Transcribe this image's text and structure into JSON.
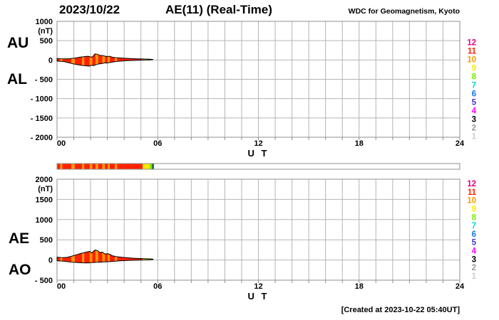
{
  "header": {
    "date": "2023/10/22",
    "title": "AE(11) (Real-Time)",
    "organization": "WDC for Geomagnetism, Kyoto"
  },
  "footer": {
    "created": "[Created at 2023-10-22 05:40UT]"
  },
  "station_count_scale": {
    "counts": [
      12,
      11,
      10,
      9,
      8,
      7,
      6,
      5,
      4,
      3,
      2,
      1
    ],
    "colors": {
      "12": "#e6007e",
      "11": "#ff2200",
      "10": "#ff9900",
      "9": "#ffe800",
      "8": "#77ee00",
      "7": "#00ddcc",
      "6": "#1177ee",
      "5": "#4433cc",
      "4": "#ff00ff",
      "3": "#000000",
      "2": "#999999",
      "1": "#cdcdcd"
    },
    "end_marker_color": "#3d6b3d"
  },
  "availability_segments": [
    {
      "from": 0.0,
      "to": 0.2,
      "count": "11"
    },
    {
      "from": 0.2,
      "to": 0.32,
      "count": "10"
    },
    {
      "from": 0.32,
      "to": 0.85,
      "count": "11"
    },
    {
      "from": 0.85,
      "to": 1.05,
      "count": "10"
    },
    {
      "from": 1.05,
      "to": 1.5,
      "count": "11"
    },
    {
      "from": 1.5,
      "to": 1.62,
      "count": "10"
    },
    {
      "from": 1.62,
      "to": 1.95,
      "count": "11"
    },
    {
      "from": 1.95,
      "to": 2.1,
      "count": "10"
    },
    {
      "from": 2.1,
      "to": 2.3,
      "count": "11"
    },
    {
      "from": 2.3,
      "to": 2.45,
      "count": "10"
    },
    {
      "from": 2.45,
      "to": 2.7,
      "count": "11"
    },
    {
      "from": 2.7,
      "to": 2.85,
      "count": "10"
    },
    {
      "from": 2.85,
      "to": 3.02,
      "count": "11"
    },
    {
      "from": 3.02,
      "to": 3.14,
      "count": "10"
    },
    {
      "from": 3.14,
      "to": 3.45,
      "count": "11"
    },
    {
      "from": 3.45,
      "to": 3.58,
      "count": "10"
    },
    {
      "from": 3.58,
      "to": 5.1,
      "count": "11"
    },
    {
      "from": 5.1,
      "to": 5.52,
      "count": "9"
    },
    {
      "from": 5.52,
      "to": 5.65,
      "count": "8"
    },
    {
      "from": 5.65,
      "to": 5.78,
      "count": "end"
    }
  ],
  "chart_data": [
    {
      "type": "area",
      "title": "AU / AL auroral electrojet indices (band colored by number of stations)",
      "series_labels": {
        "upper": "AU",
        "lower": "AL"
      },
      "unit": "(nT)",
      "xlabel": "U T",
      "xlim": [
        0,
        24
      ],
      "xticks": [
        0,
        6,
        12,
        18,
        24
      ],
      "xtick_labels": [
        "00",
        "06",
        "12",
        "18",
        "24"
      ],
      "ylim": [
        -2000,
        1000
      ],
      "yticks": [
        1000,
        500,
        0,
        -500,
        -1000,
        -1500,
        -2000
      ],
      "ytick_labels": [
        "1000",
        "500",
        "0",
        "- 500",
        "- 1000",
        "- 1500",
        "- 2000"
      ],
      "grid": true,
      "legend_position": "right",
      "x_hours": [
        0,
        0.2,
        0.4,
        0.6,
        0.8,
        1.0,
        1.2,
        1.4,
        1.6,
        1.8,
        1.95,
        2.05,
        2.15,
        2.25,
        2.4,
        2.55,
        2.7,
        2.85,
        3.0,
        3.15,
        3.3,
        3.5,
        3.7,
        3.9,
        4.2,
        4.5,
        4.8,
        5.1,
        5.4,
        5.6,
        5.72
      ],
      "upper_nT": [
        40,
        32,
        28,
        30,
        35,
        45,
        60,
        75,
        85,
        95,
        90,
        70,
        95,
        155,
        150,
        120,
        115,
        100,
        90,
        95,
        70,
        60,
        55,
        48,
        40,
        34,
        30,
        26,
        22,
        18,
        10
      ],
      "lower_nT": [
        -28,
        -35,
        -40,
        -60,
        -85,
        -105,
        -120,
        -135,
        -145,
        -155,
        -160,
        -130,
        -150,
        -135,
        -110,
        -100,
        -90,
        -75,
        -80,
        -65,
        -55,
        -40,
        -32,
        -25,
        -18,
        -12,
        -8,
        -4,
        0,
        4,
        8
      ]
    },
    {
      "type": "area",
      "title": "AE / AO auroral electrojet indices (band colored by number of stations)",
      "series_labels": {
        "upper": "AE",
        "lower": "AO"
      },
      "unit": "(nT)",
      "xlabel": "U T",
      "xlim": [
        0,
        24
      ],
      "xticks": [
        0,
        6,
        12,
        18,
        24
      ],
      "xtick_labels": [
        "00",
        "06",
        "12",
        "18",
        "24"
      ],
      "ylim": [
        -500,
        2000
      ],
      "yticks": [
        2000,
        1500,
        1000,
        500,
        0,
        -500
      ],
      "ytick_labels": [
        "2000",
        "1500",
        "1000",
        "500",
        "0",
        "- 500"
      ],
      "grid": true,
      "legend_position": "right",
      "x_hours": [
        0,
        0.2,
        0.4,
        0.6,
        0.8,
        1.0,
        1.2,
        1.4,
        1.6,
        1.8,
        1.95,
        2.05,
        2.15,
        2.25,
        2.4,
        2.55,
        2.7,
        2.85,
        3.0,
        3.15,
        3.3,
        3.5,
        3.7,
        3.9,
        4.2,
        4.5,
        4.8,
        5.1,
        5.4,
        5.6,
        5.72
      ],
      "upper_nT": [
        70,
        62,
        58,
        65,
        85,
        110,
        135,
        160,
        180,
        200,
        215,
        170,
        205,
        245,
        235,
        185,
        195,
        150,
        155,
        140,
        105,
        85,
        75,
        65,
        55,
        45,
        40,
        35,
        30,
        25,
        20
      ],
      "lower_nT": [
        -18,
        -25,
        -30,
        -40,
        -50,
        -58,
        -62,
        -68,
        -70,
        -72,
        -70,
        -60,
        -65,
        -60,
        -55,
        -55,
        -50,
        -45,
        -45,
        -40,
        -35,
        -28,
        -22,
        -18,
        -12,
        -8,
        -4,
        0,
        4,
        8,
        12
      ]
    }
  ]
}
